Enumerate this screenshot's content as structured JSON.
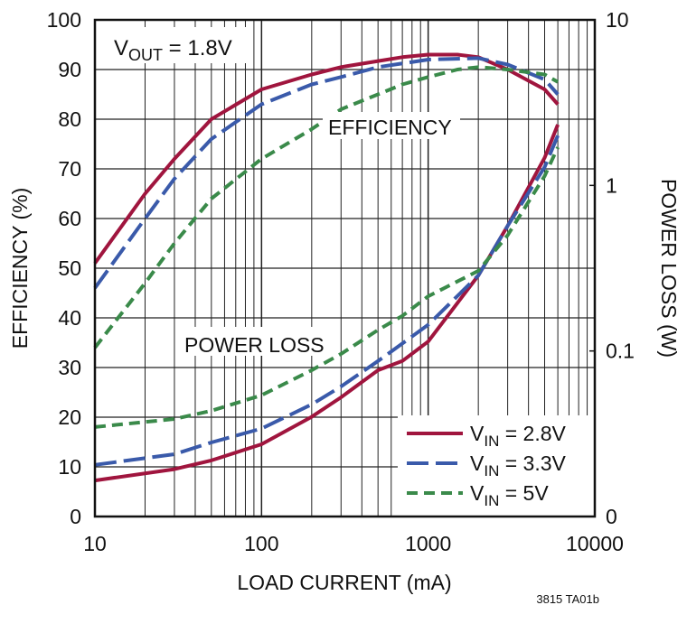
{
  "chart_data": {
    "type": "line",
    "annotation_vout": {
      "main": "V",
      "sub": "OUT",
      "rest": " = 1.8V"
    },
    "label_efficiency": "EFFICIENCY",
    "label_power_loss": "POWER LOSS",
    "xlabel": "LOAD CURRENT (mA)",
    "ylabel": "EFFICIENCY (%)",
    "y2label": "POWER LOSS (W)",
    "footnote": "3815 TA01b",
    "x_scale": "log",
    "xlim": [
      10,
      10000
    ],
    "ylim": [
      0,
      100
    ],
    "y2_scale": "log",
    "y2lim": [
      0.01,
      10
    ],
    "grid": true,
    "legend_position": "bottom-right",
    "x_ticks": [
      "10",
      "100",
      "1000",
      "10000"
    ],
    "y_ticks": [
      "0",
      "10",
      "20",
      "30",
      "40",
      "50",
      "60",
      "70",
      "80",
      "90",
      "100"
    ],
    "y2_ticks": [
      {
        "value": 0.01,
        "label": "0"
      },
      {
        "value": 0.1,
        "label": "0.1"
      },
      {
        "value": 1,
        "label": "1"
      },
      {
        "value": 10,
        "label": "10"
      }
    ],
    "series": [
      {
        "name": "V_IN = 2.8V",
        "legend": {
          "main": "V",
          "sub": "IN",
          "rest": " = 2.8V"
        },
        "color": "#a0153e",
        "dash": "solid",
        "efficiency": {
          "x": [
            10,
            20,
            30,
            50,
            100,
            200,
            300,
            500,
            700,
            1000,
            1500,
            2000,
            3000,
            5000,
            6000
          ],
          "y": [
            51,
            65,
            72,
            80,
            86,
            89,
            90.5,
            91.7,
            92.5,
            93,
            93,
            92.5,
            90,
            86,
            83
          ]
        },
        "power_loss": {
          "x": [
            10,
            30,
            50,
            100,
            200,
            300,
            500,
            700,
            1000,
            2000,
            3000,
            5000,
            6000
          ],
          "y": [
            0.0165,
            0.0193,
            0.0218,
            0.0273,
            0.04,
            0.0525,
            0.0765,
            0.087,
            0.114,
            0.286,
            0.57,
            1.47,
            2.33
          ]
        }
      },
      {
        "name": "V_IN = 3.3V",
        "legend": {
          "main": "V",
          "sub": "IN",
          "rest": " = 3.3V"
        },
        "color": "#3a5aaa",
        "dash": "long",
        "efficiency": {
          "x": [
            10,
            20,
            30,
            50,
            100,
            200,
            300,
            500,
            1000,
            2000,
            3000,
            5000,
            6000
          ],
          "y": [
            46,
            60,
            68,
            76,
            83,
            87,
            88.5,
            90.5,
            92,
            92.3,
            91,
            88,
            85
          ]
        },
        "power_loss": {
          "x": [
            10,
            30,
            50,
            100,
            200,
            300,
            500,
            700,
            1000,
            2000,
            3000,
            5000,
            6000
          ],
          "y": [
            0.0205,
            0.0238,
            0.028,
            0.034,
            0.0475,
            0.061,
            0.087,
            0.111,
            0.144,
            0.286,
            0.57,
            1.29,
            2.0
          ]
        }
      },
      {
        "name": "V_IN = 5V",
        "legend": {
          "main": "V",
          "sub": "IN",
          "rest": " = 5V"
        },
        "color": "#3a8a4a",
        "dash": "short",
        "efficiency": {
          "x": [
            10,
            20,
            30,
            50,
            100,
            200,
            300,
            500,
            700,
            1000,
            1500,
            2000,
            3000,
            5000,
            6000
          ],
          "y": [
            34,
            47,
            55,
            64,
            72,
            78,
            82,
            85,
            87,
            88.5,
            90,
            90.5,
            90,
            89,
            87.5
          ]
        },
        "power_loss": {
          "x": [
            10,
            30,
            50,
            100,
            200,
            300,
            500,
            700,
            1000,
            2000,
            3000,
            5000,
            6000
          ],
          "y": [
            0.0347,
            0.0388,
            0.0435,
            0.054,
            0.0765,
            0.096,
            0.134,
            0.163,
            0.214,
            0.305,
            0.5,
            1.14,
            1.7
          ]
        }
      }
    ]
  }
}
